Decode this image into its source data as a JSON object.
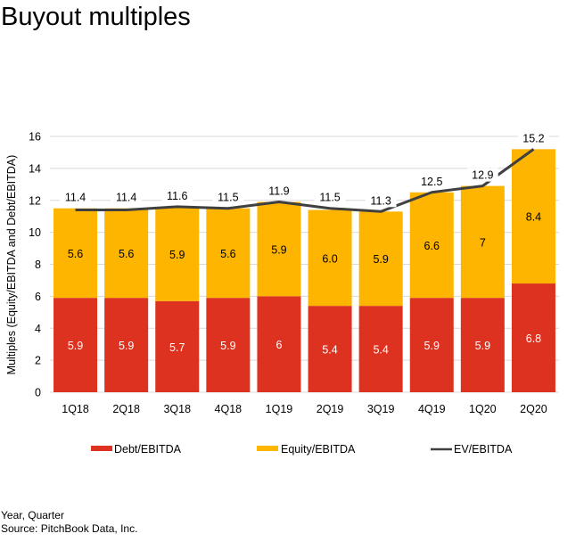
{
  "page": {
    "title": "Buyout multiples",
    "footer": {
      "note": "Year, Quarter",
      "source": "Source: PitchBook Data, Inc."
    }
  },
  "colors": {
    "debt": "#DE3220",
    "equity": "#FDB500",
    "ev_line": "#404040",
    "grid": "#D9D9D9",
    "text": "#000000",
    "debt_label_text": "#FFFFFF"
  },
  "chart_data": {
    "type": "bar",
    "stacked": true,
    "title": "Buyout multiples",
    "xlabel": "",
    "ylabel": "Multiples (Equity/EBITDA and Debt/EBITDA)",
    "ylim": [
      0,
      16
    ],
    "yticks": [
      0,
      2,
      4,
      6,
      8,
      10,
      12,
      14,
      16
    ],
    "grid": true,
    "legend_position": "bottom",
    "categories": [
      "1Q18",
      "2Q18",
      "3Q18",
      "4Q18",
      "1Q19",
      "2Q19",
      "3Q19",
      "4Q19",
      "1Q20",
      "2Q20"
    ],
    "series": [
      {
        "name": "Debt/EBITDA",
        "type": "bar",
        "values": [
          5.9,
          5.9,
          5.7,
          5.9,
          6,
          5.4,
          5.4,
          5.9,
          5.9,
          6.8
        ],
        "labels": [
          "5.9",
          "5.9",
          "5.7",
          "5.9",
          "6",
          "5.4",
          "5.4",
          "5.9",
          "5.9",
          "6.8"
        ]
      },
      {
        "name": "Equity/EBITDA",
        "type": "bar",
        "values": [
          5.6,
          5.6,
          5.9,
          5.6,
          5.9,
          6.0,
          5.9,
          6.6,
          7,
          8.4
        ],
        "labels": [
          "5.6",
          "5.6",
          "5.9",
          "5.6",
          "5.9",
          "6.0",
          "5.9",
          "6.6",
          "7",
          "8.4"
        ]
      },
      {
        "name": "EV/EBITDA",
        "type": "line",
        "values": [
          11.4,
          11.4,
          11.6,
          11.5,
          11.9,
          11.5,
          11.3,
          12.5,
          12.9,
          15.2
        ],
        "labels": [
          "11.4",
          "11.4",
          "11.6",
          "11.5",
          "11.9",
          "11.5",
          "11.3",
          "12.5",
          "12.9",
          "15.2"
        ]
      }
    ]
  }
}
